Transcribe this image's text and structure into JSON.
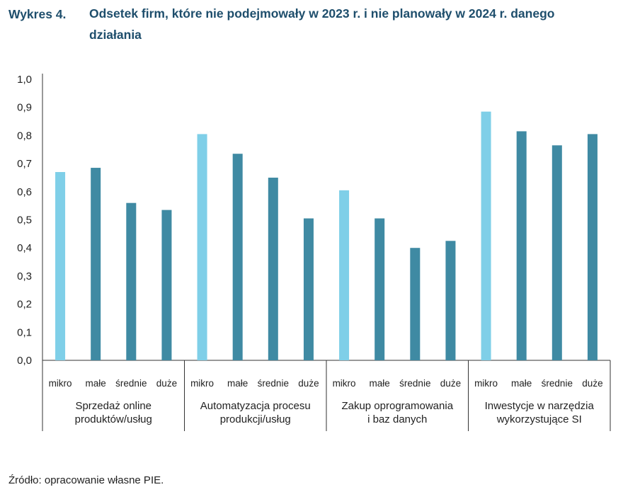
{
  "title": {
    "label": "Wykres 4.",
    "text": "Odsetek firm, które nie podejmowały w 2023 r. i nie planowały w 2024 r. danego działania"
  },
  "source": "Źródło: opracowanie własne PIE.",
  "colors": {
    "mikro": "#7fcfe8",
    "other": "#3f8aa3",
    "title": "#1e4e6c"
  },
  "chart_data": {
    "type": "bar",
    "ylim": [
      0,
      1.0
    ],
    "yticks": [
      "0,0",
      "0,1",
      "0,2",
      "0,3",
      "0,4",
      "0,5",
      "0,6",
      "0,7",
      "0,8",
      "0,9",
      "1,0"
    ],
    "grid": false,
    "categories": [
      "mikro",
      "małe",
      "średnie",
      "duże"
    ],
    "groups": [
      {
        "label": [
          "Sprzedaż online",
          "produktów/usług"
        ],
        "values": [
          0.67,
          0.685,
          0.56,
          0.535
        ]
      },
      {
        "label": [
          "Automatyzacja procesu",
          "produkcji/usług"
        ],
        "values": [
          0.805,
          0.735,
          0.65,
          0.505
        ]
      },
      {
        "label": [
          "Zakup oprogramowania",
          "i baz danych"
        ],
        "values": [
          0.605,
          0.505,
          0.4,
          0.425
        ]
      },
      {
        "label": [
          "Inwestycje w narzędzia",
          "wykorzystujące SI"
        ],
        "values": [
          0.885,
          0.815,
          0.765,
          0.805
        ]
      }
    ]
  }
}
